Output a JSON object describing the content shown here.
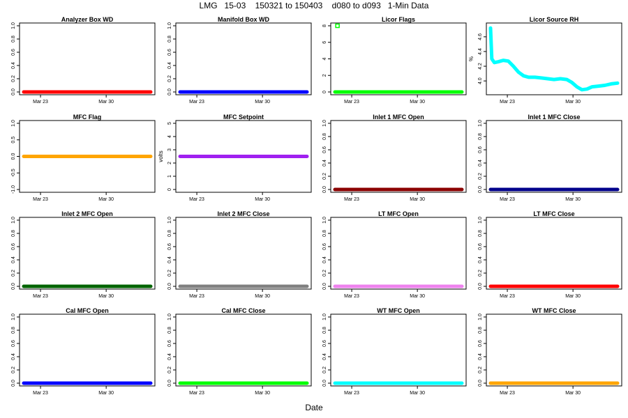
{
  "figure": {
    "title": "LMG   15-03    150321 to 150403    d080 to d093   1-Min Data",
    "xlabel": "Date",
    "xticks": [
      "Mar 23",
      "Mar 30"
    ]
  },
  "chart_data": [
    {
      "type": "scatter",
      "title": "Analyzer Box WD",
      "ylabel": "",
      "color": "#ff0000",
      "ylim": [
        0,
        1
      ],
      "yticks": [
        "0.0",
        "0.2",
        "0.4",
        "0.6",
        "0.8",
        "1.0"
      ],
      "yticks_values": [
        0,
        0.2,
        0.4,
        0.6,
        0.8,
        1.0
      ],
      "constant": 0
    },
    {
      "type": "scatter",
      "title": "Manifold Box WD",
      "ylabel": "",
      "color": "#0000ff",
      "ylim": [
        0,
        1
      ],
      "yticks": [
        "0.0",
        "0.2",
        "0.4",
        "0.6",
        "0.8",
        "1.0"
      ],
      "yticks_values": [
        0,
        0.2,
        0.4,
        0.6,
        0.8,
        1.0
      ],
      "constant": 0
    },
    {
      "type": "scatter",
      "title": "Licor Flags",
      "ylabel": "",
      "color": "#00ff00",
      "ylim": [
        0,
        8
      ],
      "yticks": [
        "0",
        "2",
        "4",
        "6",
        "8"
      ],
      "yticks_values": [
        0,
        2,
        4,
        6,
        8
      ],
      "constant": 0,
      "outliers": [
        {
          "x": 0.02,
          "y": 8
        }
      ]
    },
    {
      "type": "scatter",
      "title": "Licor Source RH",
      "ylabel": "%",
      "color": "#00ffff",
      "ylim": [
        3.85,
        4.75
      ],
      "yticks": [
        "4.0",
        "4.2",
        "4.4",
        "4.6"
      ],
      "yticks_values": [
        4.0,
        4.2,
        4.4,
        4.6
      ],
      "series_points": [
        [
          0.0,
          4.72
        ],
        [
          0.01,
          4.3
        ],
        [
          0.03,
          4.25
        ],
        [
          0.06,
          4.26
        ],
        [
          0.1,
          4.28
        ],
        [
          0.14,
          4.27
        ],
        [
          0.18,
          4.2
        ],
        [
          0.22,
          4.12
        ],
        [
          0.26,
          4.07
        ],
        [
          0.3,
          4.05
        ],
        [
          0.35,
          4.05
        ],
        [
          0.4,
          4.04
        ],
        [
          0.45,
          4.03
        ],
        [
          0.5,
          4.02
        ],
        [
          0.55,
          4.03
        ],
        [
          0.6,
          4.02
        ],
        [
          0.64,
          3.98
        ],
        [
          0.68,
          3.92
        ],
        [
          0.72,
          3.88
        ],
        [
          0.76,
          3.89
        ],
        [
          0.8,
          3.92
        ],
        [
          0.85,
          3.93
        ],
        [
          0.9,
          3.94
        ],
        [
          0.95,
          3.96
        ],
        [
          1.0,
          3.97
        ]
      ]
    },
    {
      "type": "scatter",
      "title": "MFC Flag",
      "ylabel": "",
      "color": "#ffa500",
      "ylim": [
        -1,
        1
      ],
      "yticks": [
        "-1.0",
        "-0.5",
        "0.0",
        "0.5",
        "1.0"
      ],
      "yticks_values": [
        -1,
        -0.5,
        0,
        0.5,
        1
      ],
      "constant": 0
    },
    {
      "type": "scatter",
      "title": "MFC Setpoint",
      "ylabel": "volts",
      "color": "#a020f0",
      "ylim": [
        0,
        5
      ],
      "yticks": [
        "0",
        "1",
        "2",
        "3",
        "4",
        "5"
      ],
      "yticks_values": [
        0,
        1,
        2,
        3,
        4,
        5
      ],
      "constant": 2.5
    },
    {
      "type": "scatter",
      "title": "Inlet 1 MFC Open",
      "ylabel": "",
      "color": "#8b0000",
      "ylim": [
        0,
        1
      ],
      "yticks": [
        "0.0",
        "0.2",
        "0.4",
        "0.6",
        "0.8",
        "1.0"
      ],
      "yticks_values": [
        0,
        0.2,
        0.4,
        0.6,
        0.8,
        1.0
      ],
      "constant": 0
    },
    {
      "type": "scatter",
      "title": "Inlet 1 MFC Close",
      "ylabel": "",
      "color": "#00008b",
      "ylim": [
        0,
        1
      ],
      "yticks": [
        "0.0",
        "0.2",
        "0.4",
        "0.6",
        "0.8",
        "1.0"
      ],
      "yticks_values": [
        0,
        0.2,
        0.4,
        0.6,
        0.8,
        1.0
      ],
      "constant": 0
    },
    {
      "type": "scatter",
      "title": "Inlet 2 MFC Open",
      "ylabel": "",
      "color": "#006400",
      "ylim": [
        0,
        1
      ],
      "yticks": [
        "0.0",
        "0.2",
        "0.4",
        "0.6",
        "0.8",
        "1.0"
      ],
      "yticks_values": [
        0,
        0.2,
        0.4,
        0.6,
        0.8,
        1.0
      ],
      "constant": 0
    },
    {
      "type": "scatter",
      "title": "Inlet 2 MFC Close",
      "ylabel": "",
      "color": "#808080",
      "ylim": [
        0,
        1
      ],
      "yticks": [
        "0.0",
        "0.2",
        "0.4",
        "0.6",
        "0.8",
        "1.0"
      ],
      "yticks_values": [
        0,
        0.2,
        0.4,
        0.6,
        0.8,
        1.0
      ],
      "constant": 0
    },
    {
      "type": "scatter",
      "title": "LT MFC Open",
      "ylabel": "",
      "color": "#ee82ee",
      "ylim": [
        0,
        1
      ],
      "yticks": [
        "0.0",
        "0.2",
        "0.4",
        "0.6",
        "0.8",
        "1.0"
      ],
      "yticks_values": [
        0,
        0.2,
        0.4,
        0.6,
        0.8,
        1.0
      ],
      "constant": 0
    },
    {
      "type": "scatter",
      "title": "LT MFC Close",
      "ylabel": "",
      "color": "#ff0000",
      "ylim": [
        0,
        1
      ],
      "yticks": [
        "0.0",
        "0.2",
        "0.4",
        "0.6",
        "0.8",
        "1.0"
      ],
      "yticks_values": [
        0,
        0.2,
        0.4,
        0.6,
        0.8,
        1.0
      ],
      "constant": 0
    },
    {
      "type": "scatter",
      "title": "Cal MFC Open",
      "ylabel": "",
      "color": "#0000ff",
      "ylim": [
        0,
        1
      ],
      "yticks": [
        "0.0",
        "0.2",
        "0.4",
        "0.6",
        "0.8",
        "1.0"
      ],
      "yticks_values": [
        0,
        0.2,
        0.4,
        0.6,
        0.8,
        1.0
      ],
      "constant": 0
    },
    {
      "type": "scatter",
      "title": "Cal MFC Close",
      "ylabel": "",
      "color": "#00ff00",
      "ylim": [
        0,
        1
      ],
      "yticks": [
        "0.0",
        "0.2",
        "0.4",
        "0.6",
        "0.8",
        "1.0"
      ],
      "yticks_values": [
        0,
        0.2,
        0.4,
        0.6,
        0.8,
        1.0
      ],
      "constant": 0
    },
    {
      "type": "scatter",
      "title": "WT MFC Open",
      "ylabel": "",
      "color": "#00ffff",
      "ylim": [
        0,
        1
      ],
      "yticks": [
        "0.0",
        "0.2",
        "0.4",
        "0.6",
        "0.8",
        "1.0"
      ],
      "yticks_values": [
        0,
        0.2,
        0.4,
        0.6,
        0.8,
        1.0
      ],
      "constant": 0
    },
    {
      "type": "scatter",
      "title": "WT MFC Close",
      "ylabel": "",
      "color": "#ffa500",
      "ylim": [
        0,
        1
      ],
      "yticks": [
        "0.0",
        "0.2",
        "0.4",
        "0.6",
        "0.8",
        "1.0"
      ],
      "yticks_values": [
        0,
        0.2,
        0.4,
        0.6,
        0.8,
        1.0
      ],
      "constant": 0
    }
  ]
}
